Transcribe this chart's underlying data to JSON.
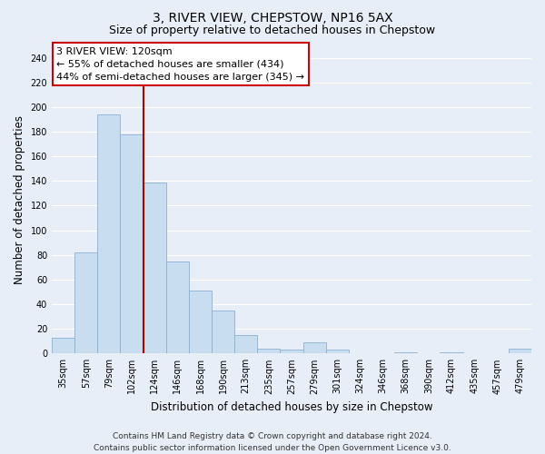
{
  "title": "3, RIVER VIEW, CHEPSTOW, NP16 5AX",
  "subtitle": "Size of property relative to detached houses in Chepstow",
  "xlabel": "Distribution of detached houses by size in Chepstow",
  "ylabel": "Number of detached properties",
  "bar_labels": [
    "35sqm",
    "57sqm",
    "79sqm",
    "102sqm",
    "124sqm",
    "146sqm",
    "168sqm",
    "190sqm",
    "213sqm",
    "235sqm",
    "257sqm",
    "279sqm",
    "301sqm",
    "324sqm",
    "346sqm",
    "368sqm",
    "390sqm",
    "412sqm",
    "435sqm",
    "457sqm",
    "479sqm"
  ],
  "bar_values": [
    13,
    82,
    194,
    178,
    139,
    75,
    51,
    35,
    15,
    4,
    3,
    9,
    3,
    0,
    0,
    1,
    0,
    1,
    0,
    0,
    4
  ],
  "bar_color": "#c9ddf0",
  "bar_edge_color": "#8ab0d4",
  "vline_color": "#aa0000",
  "vline_bar_index": 3,
  "ylim": [
    0,
    250
  ],
  "yticks": [
    0,
    20,
    40,
    60,
    80,
    100,
    120,
    140,
    160,
    180,
    200,
    220,
    240
  ],
  "annotation_text_line1": "3 RIVER VIEW: 120sqm",
  "annotation_text_line2": "← 55% of detached houses are smaller (434)",
  "annotation_text_line3": "44% of semi-detached houses are larger (345) →",
  "annotation_box_color": "#ffffff",
  "annotation_box_edge_color": "#cc0000",
  "footer_line1": "Contains HM Land Registry data © Crown copyright and database right 2024.",
  "footer_line2": "Contains public sector information licensed under the Open Government Licence v3.0.",
  "background_color": "#e8eef8",
  "plot_background_color": "#e8eef8",
  "grid_color": "#ffffff",
  "title_fontsize": 10,
  "subtitle_fontsize": 9,
  "axis_label_fontsize": 8.5,
  "tick_fontsize": 7,
  "annotation_fontsize": 8,
  "footer_fontsize": 6.5
}
